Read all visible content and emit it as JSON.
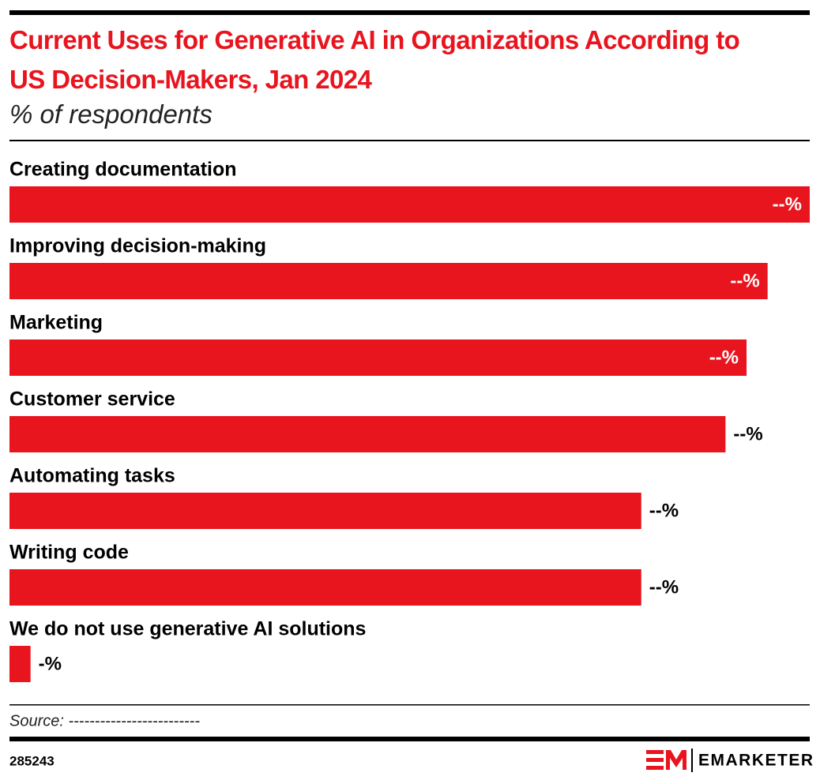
{
  "chart_data": {
    "type": "bar",
    "orientation": "horizontal",
    "title": "Current Uses for Generative AI in Organizations According to US Decision-Makers, Jan 2024",
    "subtitle": "% of respondents",
    "categories": [
      "Creating documentation",
      "Improving decision-making",
      "Marketing",
      "Customer service",
      "Automating tasks",
      "Writing code",
      "We do not use generative AI solutions"
    ],
    "values": [
      38,
      36,
      35,
      34,
      30,
      30,
      1
    ],
    "value_labels": [
      "--%",
      "--%",
      "--%",
      "--%",
      "--%",
      "--%",
      "-%"
    ],
    "color": "#e8141e",
    "source": "Source: -------------------------",
    "chart_id": "285243",
    "brand": "EMARKETER"
  }
}
